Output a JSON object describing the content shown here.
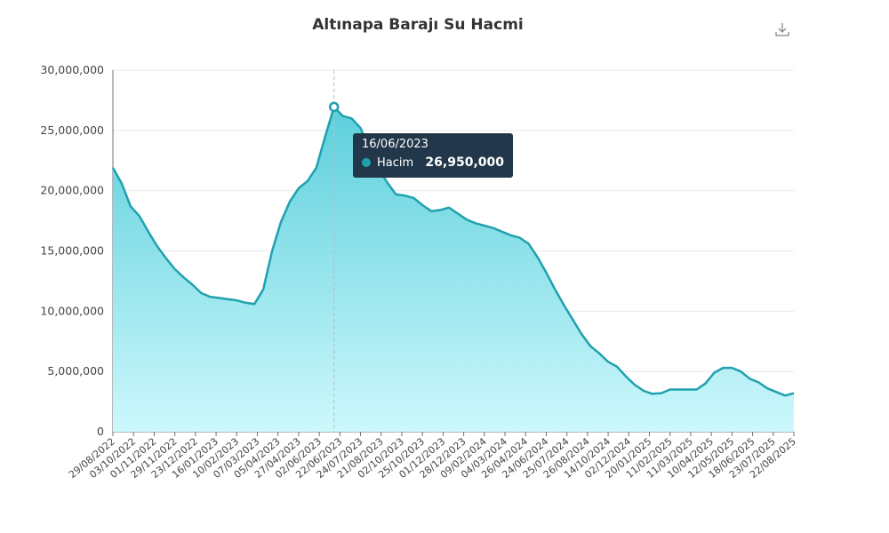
{
  "chart_data": {
    "type": "area",
    "title": "Altınapa Barajı Su Hacmi",
    "series": [
      {
        "name": "Hacim",
        "values": [
          21900000,
          20600000,
          18700000,
          17900000,
          16600000,
          15400000,
          14400000,
          13500000,
          12800000,
          12200000,
          11500000,
          11200000,
          11100000,
          11000000,
          10900000,
          10700000,
          10600000,
          11800000,
          15000000,
          17400000,
          19100000,
          20200000,
          20800000,
          21900000,
          24500000,
          26950000,
          26200000,
          26000000,
          25200000,
          23500000,
          21900000,
          20700000,
          19700000,
          19600000,
          19400000,
          18800000,
          18300000,
          18400000,
          18600000,
          18100000,
          17600000,
          17300000,
          17100000,
          16900000,
          16600000,
          16300000,
          16100000,
          15600000,
          14500000,
          13200000,
          11800000,
          10500000,
          9300000,
          8100000,
          7100000,
          6500000,
          5800000,
          5400000,
          4600000,
          3900000,
          3400000,
          3150000,
          3200000,
          3500000,
          3500000,
          3500000,
          3500000,
          4000000,
          4900000,
          5300000,
          5300000,
          5000000,
          4400000,
          4100000,
          3600000,
          3300000,
          3000000,
          3200000
        ]
      }
    ],
    "x_tick_labels": [
      "29/08/2022",
      "03/10/2022",
      "01/11/2022",
      "29/11/2022",
      "23/12/2022",
      "16/01/2023",
      "10/02/2023",
      "07/03/2023",
      "05/04/2023",
      "27/04/2023",
      "02/06/2023",
      "22/06/2023",
      "24/07/2023",
      "21/08/2023",
      "02/10/2023",
      "25/10/2023",
      "01/12/2023",
      "28/12/2023",
      "09/02/2024",
      "04/03/2024",
      "26/04/2024",
      "24/06/2024",
      "25/07/2024",
      "26/08/2024",
      "14/10/2024",
      "02/12/2024",
      "20/01/2025",
      "11/02/2025",
      "11/03/2025",
      "10/04/2025",
      "12/05/2025",
      "18/06/2025",
      "23/07/2025",
      "22/08/2025"
    ],
    "y_ticks": [
      0,
      5000000,
      10000000,
      15000000,
      20000000,
      25000000,
      30000000
    ],
    "y_tick_labels": [
      "0",
      "5,000,000",
      "10,000,000",
      "15,000,000",
      "20,000,000",
      "25,000,000",
      "30,000,000"
    ],
    "ylim": [
      0,
      30000000
    ],
    "grid": true,
    "legend": "none",
    "colors": {
      "line": "#1fa1ae",
      "area_top": "#5ccfdc",
      "area_bottom": "#cdf8fc"
    }
  },
  "tooltip": {
    "date": "16/06/2023",
    "series": "Hacim",
    "value": "26,950,000",
    "point_index": 25
  },
  "toolbar": {
    "download_icon": "download-icon"
  }
}
